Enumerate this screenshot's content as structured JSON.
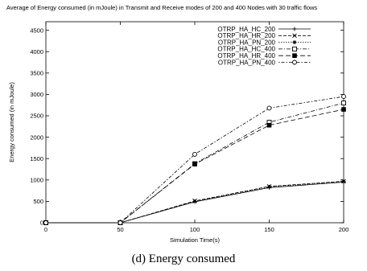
{
  "chart_data": {
    "type": "line",
    "title": "Average of Energy consumed (in mJoule) in Transmit and Receive modes of 200 and 400 Nodes with 30 traffic flows",
    "xlabel": "Simulation Time(s)",
    "ylabel": "Energy consumed (in mJoule)",
    "xlim": [
      0,
      200
    ],
    "ylim": [
      0,
      4700
    ],
    "xticks": [
      0,
      50,
      100,
      150,
      200
    ],
    "yticks": [
      0,
      500,
      1000,
      1500,
      2000,
      2500,
      3000,
      3500,
      4000,
      4500
    ],
    "grid": false,
    "legend_position": "top-right",
    "x": [
      0,
      50,
      100,
      150,
      200
    ],
    "series": [
      {
        "name": "OTRP_HA_HC_200",
        "values": [
          0,
          0,
          490,
          820,
          950
        ],
        "marker": "plus",
        "dash": "solid"
      },
      {
        "name": "OTRP_HA_HR_200",
        "values": [
          0,
          0,
          510,
          850,
          970
        ],
        "marker": "x",
        "dash": "4,2"
      },
      {
        "name": "OTRP_HA_PN_200",
        "values": [
          0,
          0,
          500,
          840,
          965
        ],
        "marker": "asterisk",
        "dash": "1.5,1.5"
      },
      {
        "name": "OTRP_HA_HC_400",
        "values": [
          0,
          0,
          1380,
          2350,
          2800
        ],
        "marker": "open-square",
        "dash": "5,2,1,2"
      },
      {
        "name": "OTRP_HA_HR_400",
        "values": [
          0,
          0,
          1370,
          2280,
          2650
        ],
        "marker": "filled-square",
        "dash": "6,3"
      },
      {
        "name": "OTRP_HA_PN_400",
        "values": [
          0,
          0,
          1600,
          2680,
          2950
        ],
        "marker": "open-circle",
        "dash": "1.5,2,4,2"
      }
    ]
  },
  "caption": "(d) Energy consumed"
}
